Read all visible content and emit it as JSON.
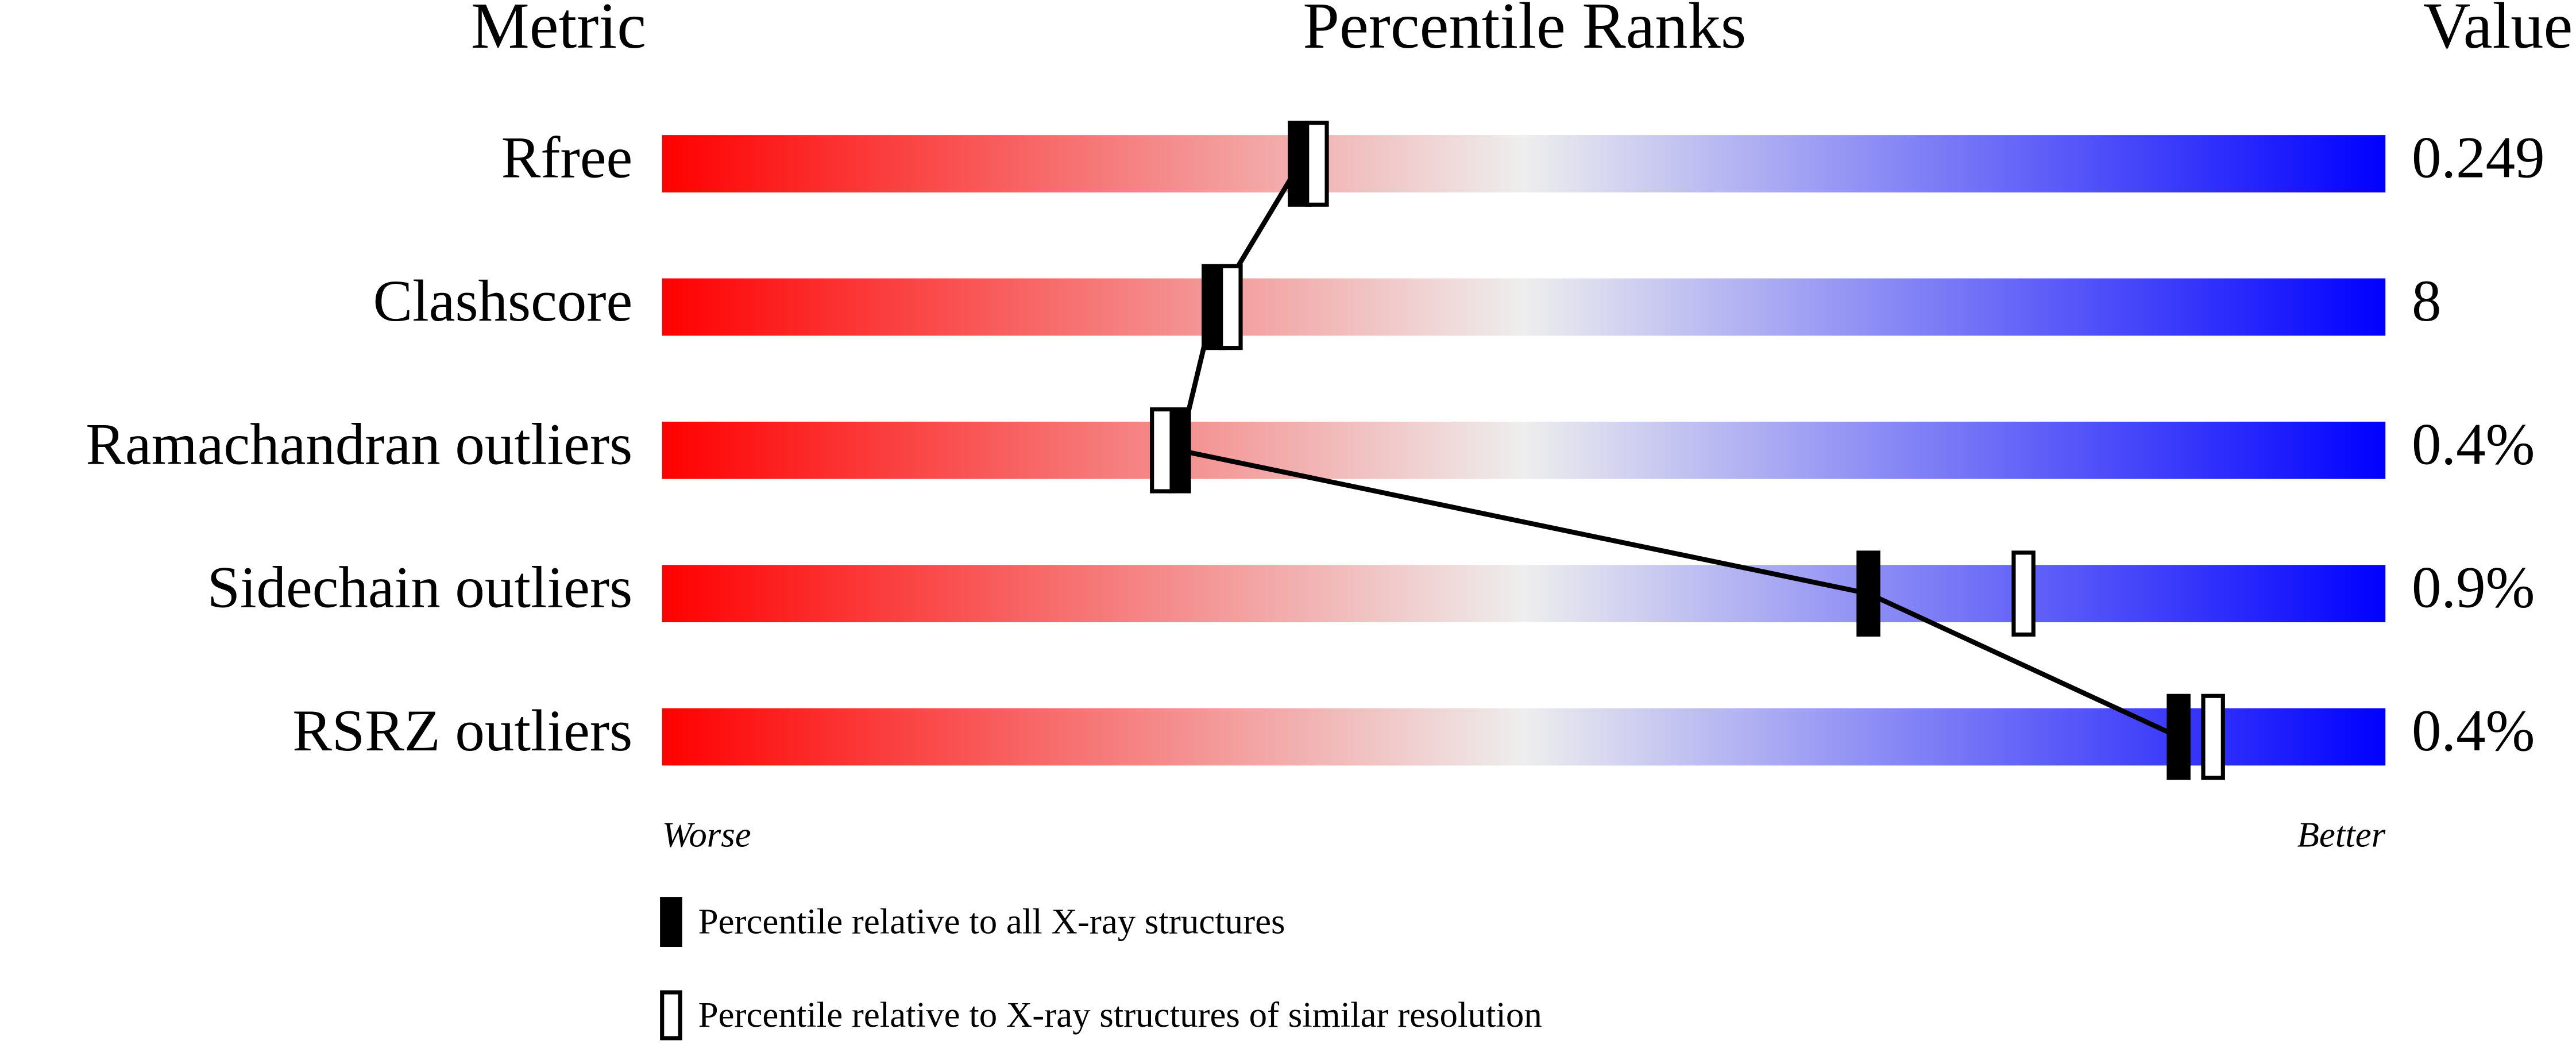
{
  "chart_data": {
    "type": "percentile",
    "headers": [
      "Metric",
      "Percentile Ranks",
      "Value"
    ],
    "categories": [
      "Rfree",
      "Clashscore",
      "Ramachandran outliers",
      "Sidechain outliers",
      "RSRZ outliers"
    ],
    "metric_values": [
      "0.249",
      "8",
      "0.4%",
      "0.9%",
      "0.4%"
    ],
    "series": [
      {
        "name": "Percentile relative to all X-ray structures",
        "color": "#000000",
        "values": [
          37,
          32,
          30,
          70,
          88
        ]
      },
      {
        "name": "Percentile relative to X-ray structures of similar resolution",
        "color": "#ffffff",
        "values": [
          38,
          33,
          29,
          79,
          90
        ]
      }
    ],
    "xlim": [
      0,
      100
    ],
    "axis_labels": [
      "Worse",
      "Better"
    ],
    "gradient": [
      "#ff0000",
      "#eeeeee",
      "#0000ff"
    ]
  }
}
